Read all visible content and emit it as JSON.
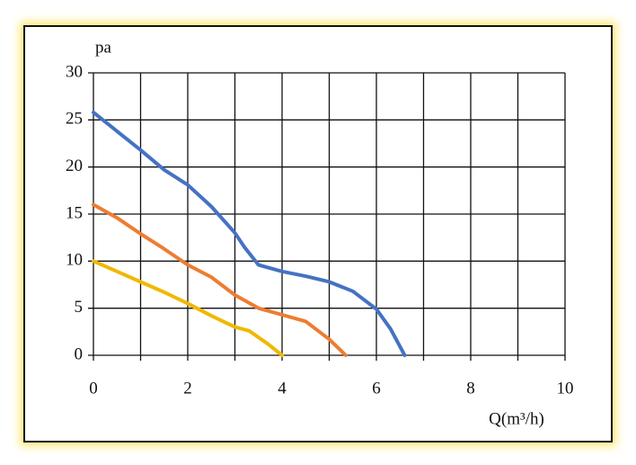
{
  "chart_data": {
    "type": "line",
    "y_label": "pa",
    "x_label": "Q(m³/h)",
    "xlim": [
      0,
      10
    ],
    "xticks": [
      0,
      2,
      4,
      6,
      8,
      10
    ],
    "x_minor_grid": [
      1,
      3,
      5,
      7,
      9
    ],
    "ylim": [
      0,
      30
    ],
    "yticks": [
      0,
      5,
      10,
      15,
      20,
      25,
      30
    ],
    "grid": true,
    "series": [
      {
        "color": "#4472c4",
        "x": [
          0,
          0.5,
          1,
          1.5,
          2,
          2.5,
          3,
          3.2,
          3.5,
          4,
          4.5,
          5,
          5.5,
          6,
          6.3,
          6.6
        ],
        "values": [
          25.8,
          23.8,
          21.8,
          19.7,
          18.1,
          15.8,
          13,
          11.5,
          9.6,
          8.9,
          8.4,
          7.8,
          6.8,
          4.9,
          2.8,
          0
        ]
      },
      {
        "color": "#ed7d31",
        "x": [
          0,
          0.5,
          1,
          1.5,
          2,
          2.5,
          3,
          3.5,
          4,
          4.5,
          5,
          5.35
        ],
        "values": [
          16,
          14.6,
          12.9,
          11.3,
          9.6,
          8.3,
          6.4,
          5,
          4.3,
          3.6,
          1.7,
          0
        ]
      },
      {
        "color": "#f0b800",
        "x": [
          0,
          0.5,
          1,
          1.5,
          2,
          2.5,
          3,
          3.3,
          3.7,
          4
        ],
        "values": [
          10,
          8.9,
          7.8,
          6.7,
          5.5,
          4.2,
          3,
          2.6,
          1.2,
          0
        ]
      }
    ]
  }
}
